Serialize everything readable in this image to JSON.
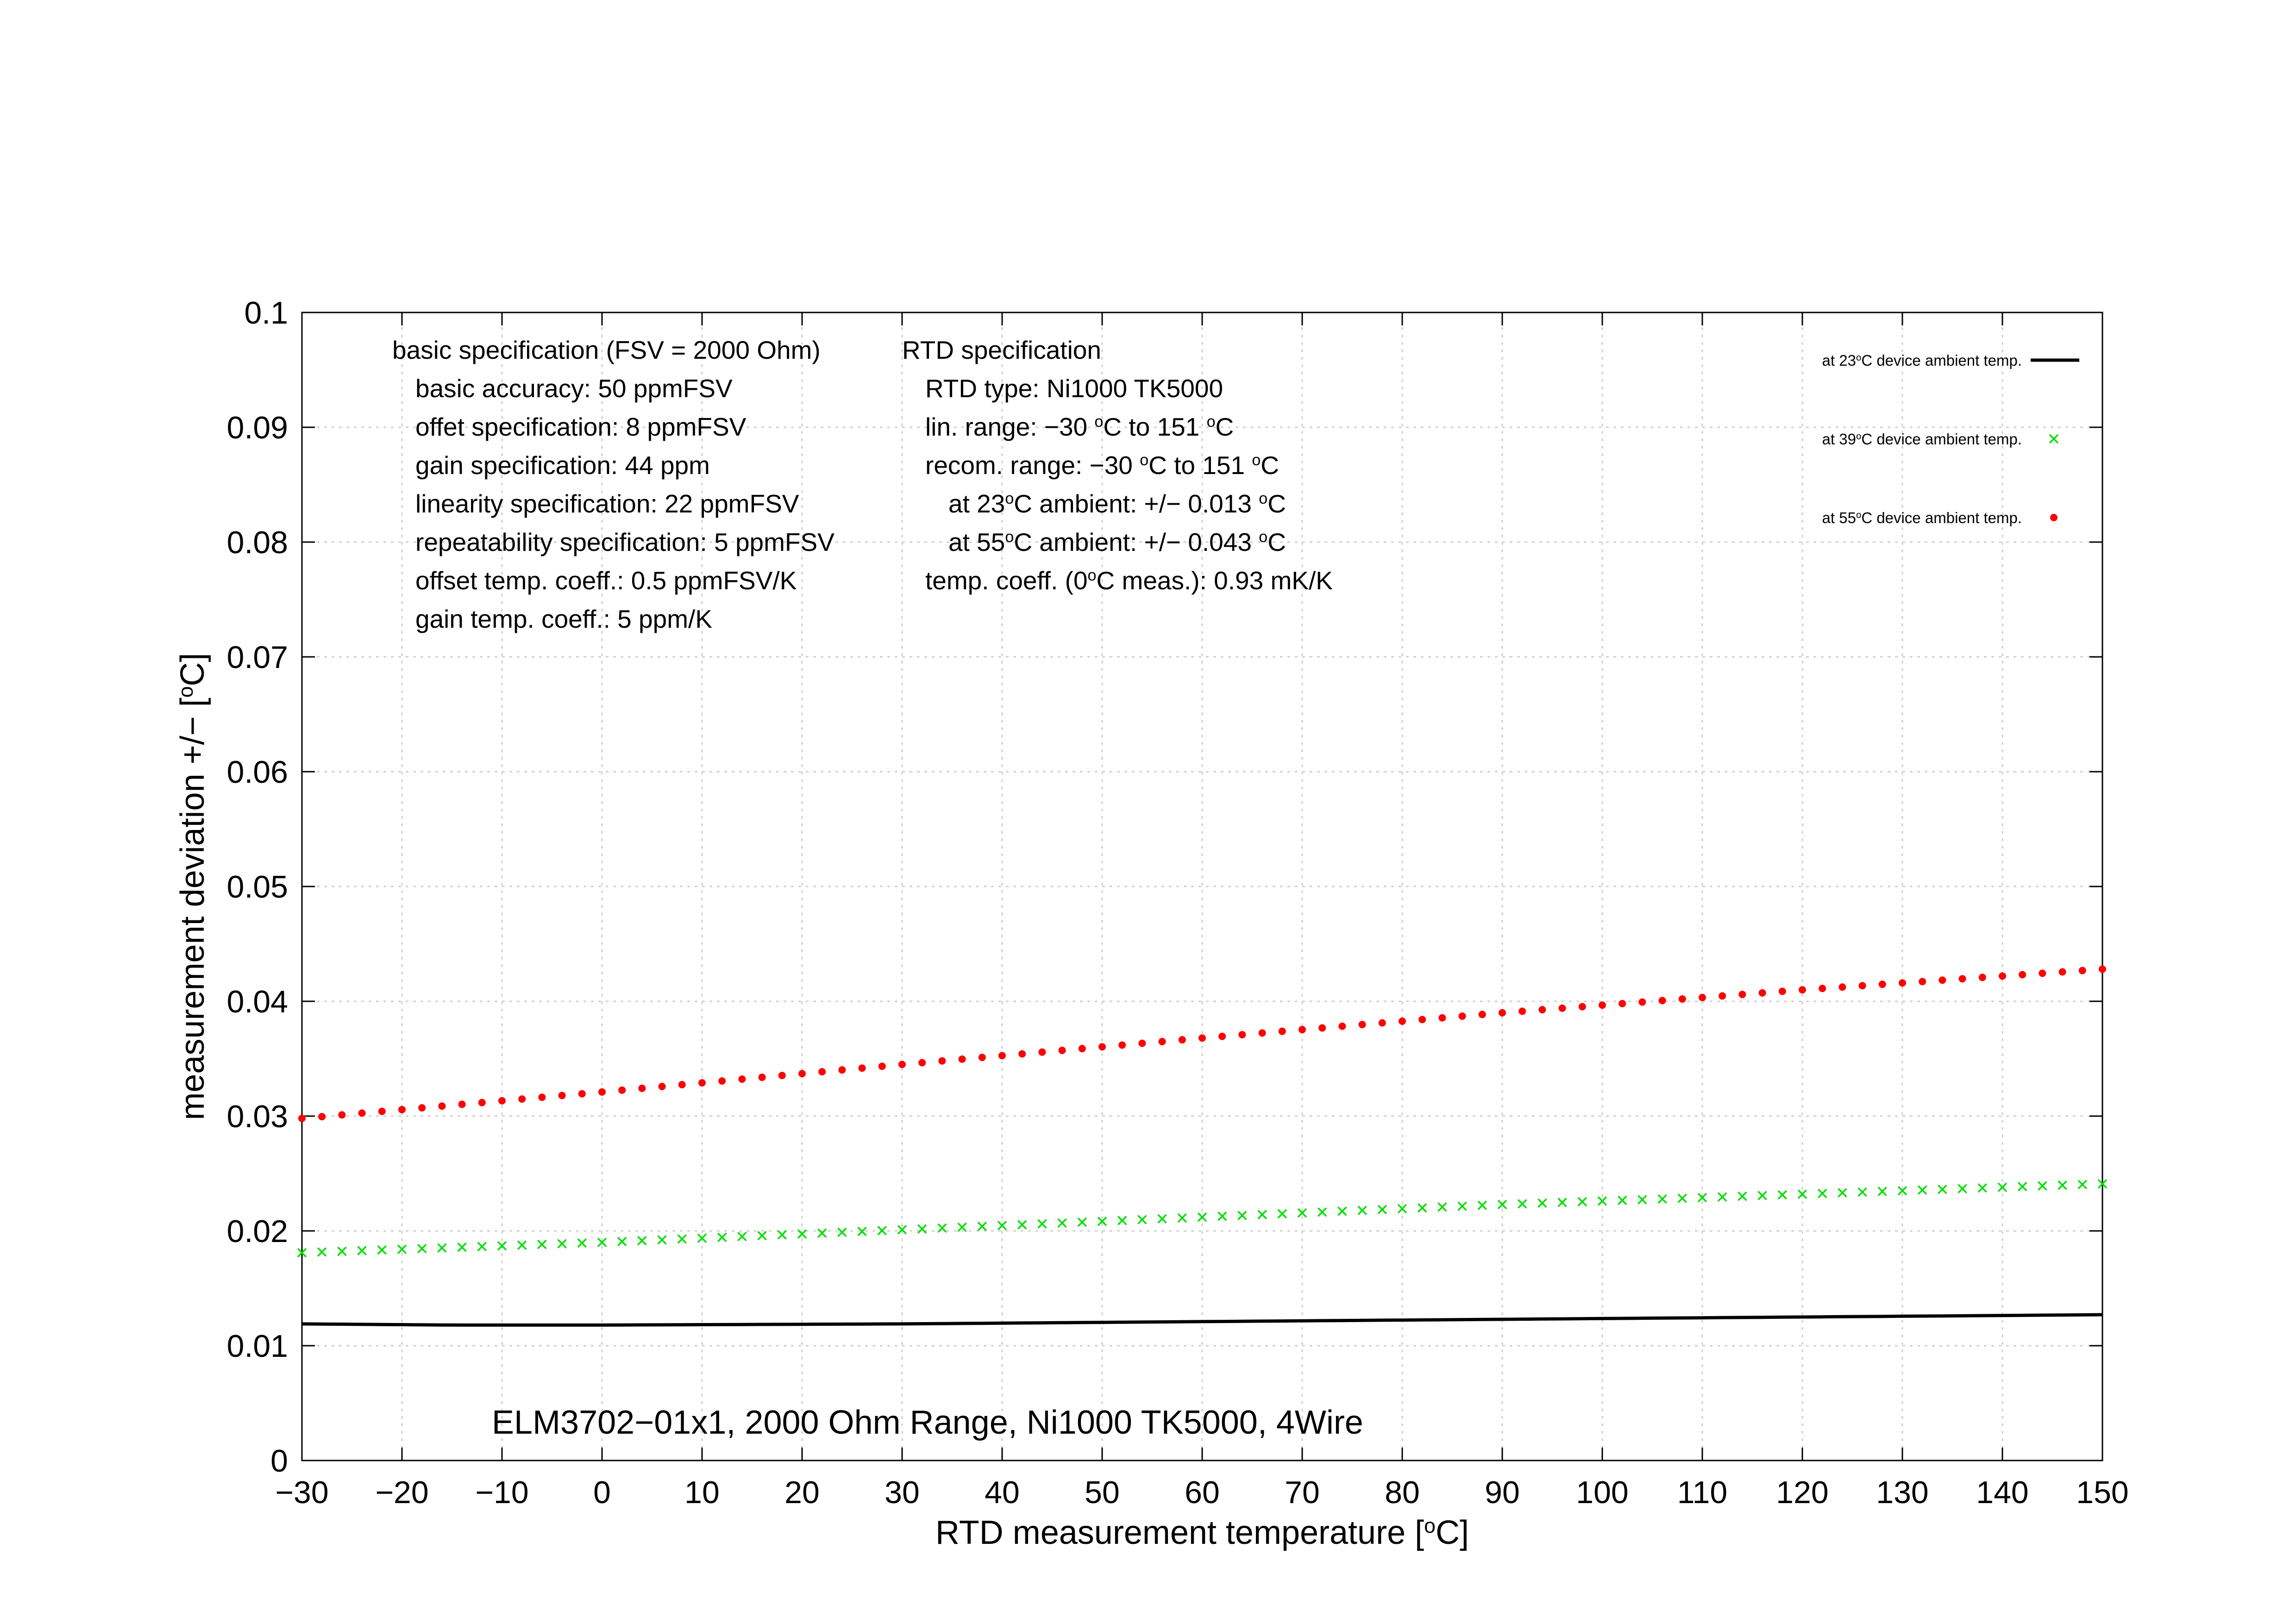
{
  "chart_data": {
    "type": "scatter",
    "xlabel": {
      "main": "RTD measurement temperature [",
      "sup": "o",
      "tail": "C]"
    },
    "ylabel": {
      "main": "measurement deviation +/− [",
      "sup": "o",
      "tail": "C]"
    },
    "xlim": [
      -30,
      150
    ],
    "ylim": [
      0,
      0.1
    ],
    "x_ticks": [
      -30,
      -20,
      -10,
      0,
      10,
      20,
      30,
      40,
      50,
      60,
      70,
      80,
      90,
      100,
      110,
      120,
      130,
      140,
      150
    ],
    "x_tick_labels": [
      "−30",
      "−20",
      "−10",
      "0",
      "10",
      "20",
      "30",
      "40",
      "50",
      "60",
      "70",
      "80",
      "90",
      "100",
      "110",
      "120",
      "130",
      "140",
      "150"
    ],
    "y_ticks": [
      0,
      0.01,
      0.02,
      0.03,
      0.04,
      0.05,
      0.06,
      0.07,
      0.08,
      0.09,
      0.1
    ],
    "y_tick_labels": [
      "0",
      "0.01",
      "0.02",
      "0.03",
      "0.04",
      "0.05",
      "0.06",
      "0.07",
      "0.08",
      "0.09",
      "0.1"
    ],
    "grid": true,
    "legend_position": "top-right",
    "series": [
      {
        "name": {
          "pre": "at 23",
          "sup": "o",
          "post": "C device ambient temp."
        },
        "style": "line",
        "color": "#000000",
        "x_start": -30,
        "x_end": 150,
        "x_step": 2,
        "points": [
          [
            -30,
            0.0119
          ],
          [
            -15,
            0.0118
          ],
          [
            0,
            0.0118
          ],
          [
            30,
            0.0119
          ],
          [
            60,
            0.0121
          ],
          [
            90,
            0.0123
          ],
          [
            120,
            0.0125
          ],
          [
            150,
            0.0127
          ]
        ]
      },
      {
        "name": {
          "pre": "at 39",
          "sup": "o",
          "post": "C device ambient temp."
        },
        "style": "cross",
        "color": "#00dd00",
        "x_start": -30,
        "x_end": 150,
        "x_step": 2,
        "points": [
          [
            -30,
            0.0181
          ],
          [
            0,
            0.019
          ],
          [
            30,
            0.0201
          ],
          [
            60,
            0.0212
          ],
          [
            90,
            0.0223
          ],
          [
            120,
            0.0232
          ],
          [
            150,
            0.0241
          ]
        ]
      },
      {
        "name": {
          "pre": "at 55",
          "sup": "o",
          "post": "C device ambient temp."
        },
        "style": "dot",
        "color": "#ff0000",
        "x_start": -30,
        "x_end": 150,
        "x_step": 2,
        "points": [
          [
            -30,
            0.0298
          ],
          [
            0,
            0.0321
          ],
          [
            30,
            0.0345
          ],
          [
            60,
            0.0368
          ],
          [
            90,
            0.039
          ],
          [
            120,
            0.041
          ],
          [
            150,
            0.0428
          ]
        ]
      }
    ],
    "annotations": {
      "basic": [
        {
          "parts": [
            {
              "t": "basic specification (FSV = 2000 Ohm)"
            }
          ]
        },
        {
          "parts": [
            {
              "t": "basic accuracy: 50 ppmFSV"
            }
          ]
        },
        {
          "parts": [
            {
              "t": "offet specification: 8 ppmFSV"
            }
          ]
        },
        {
          "parts": [
            {
              "t": "gain specification: 44 ppm"
            }
          ]
        },
        {
          "parts": [
            {
              "t": "linearity specification: 22 ppmFSV"
            }
          ]
        },
        {
          "parts": [
            {
              "t": "repeatability specification: 5 ppmFSV"
            }
          ]
        },
        {
          "parts": [
            {
              "t": "offset temp. coeff.: 0.5 ppmFSV/K"
            }
          ]
        },
        {
          "parts": [
            {
              "t": "gain temp. coeff.: 5 ppm/K"
            }
          ]
        }
      ],
      "rtd": [
        {
          "parts": [
            {
              "t": "RTD specification"
            }
          ]
        },
        {
          "parts": [
            {
              "t": "RTD type: Ni1000 TK5000"
            }
          ]
        },
        {
          "parts": [
            {
              "t": "lin. range: −30 "
            },
            {
              "t": "o",
              "sup": true
            },
            {
              "t": "C to 151 "
            },
            {
              "t": "o",
              "sup": true
            },
            {
              "t": "C"
            }
          ]
        },
        {
          "parts": [
            {
              "t": "recom. range: −30 "
            },
            {
              "t": "o",
              "sup": true
            },
            {
              "t": "C to 151 "
            },
            {
              "t": "o",
              "sup": true
            },
            {
              "t": "C"
            }
          ]
        },
        {
          "parts": [
            {
              "t": "at 23"
            },
            {
              "t": "o",
              "sup": true
            },
            {
              "t": "C ambient: +/− 0.013 "
            },
            {
              "t": "o",
              "sup": true
            },
            {
              "t": "C"
            }
          ]
        },
        {
          "parts": [
            {
              "t": "at 55"
            },
            {
              "t": "o",
              "sup": true
            },
            {
              "t": "C ambient: +/− 0.043 "
            },
            {
              "t": "o",
              "sup": true
            },
            {
              "t": "C"
            }
          ]
        },
        {
          "parts": [
            {
              "t": "temp. coeff. (0"
            },
            {
              "t": "o",
              "sup": true
            },
            {
              "t": "C meas.): 0.93 mK/K"
            }
          ]
        }
      ],
      "footer": "ELM3702−01x1, 2000 Ohm Range, Ni1000 TK5000, 4Wire"
    }
  }
}
